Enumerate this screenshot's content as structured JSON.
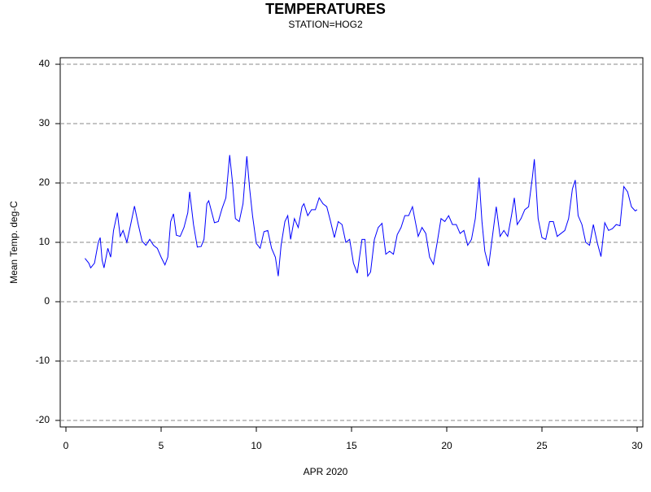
{
  "chart_data": {
    "type": "line",
    "title": "TEMPERATURES",
    "subtitle": "STATION=HOG2",
    "xlabel": "APR 2020",
    "ylabel": "Mean Temp. deg-C",
    "xlim": [
      -0.3,
      30.3
    ],
    "ylim": [
      -21.1,
      41.1
    ],
    "xticks": [
      0,
      5,
      10,
      15,
      20,
      25,
      30
    ],
    "yticks": [
      -20,
      -10,
      0,
      10,
      20,
      30,
      40
    ],
    "grid": true,
    "series": [
      {
        "color": "#0000ff",
        "x": [
          1.0,
          1.2,
          1.3,
          1.5,
          1.7,
          1.8,
          1.9,
          2.0,
          2.2,
          2.35,
          2.5,
          2.7,
          2.85,
          3.0,
          3.2,
          3.4,
          3.6,
          3.8,
          4.0,
          4.2,
          4.4,
          4.6,
          4.8,
          5.0,
          5.2,
          5.35,
          5.5,
          5.65,
          5.8,
          6.0,
          6.2,
          6.4,
          6.5,
          6.7,
          6.9,
          7.1,
          7.25,
          7.4,
          7.5,
          7.8,
          8.0,
          8.2,
          8.4,
          8.6,
          8.75,
          8.9,
          9.1,
          9.3,
          9.5,
          9.65,
          9.8,
          10.0,
          10.2,
          10.4,
          10.6,
          10.8,
          11.0,
          11.15,
          11.3,
          11.5,
          11.65,
          11.8,
          12.0,
          12.2,
          12.4,
          12.5,
          12.7,
          12.9,
          13.1,
          13.3,
          13.5,
          13.7,
          13.9,
          14.1,
          14.3,
          14.5,
          14.7,
          14.9,
          15.1,
          15.3,
          15.55,
          15.7,
          15.85,
          16.0,
          16.2,
          16.4,
          16.6,
          16.8,
          17.0,
          17.2,
          17.4,
          17.6,
          17.8,
          18.0,
          18.2,
          18.35,
          18.5,
          18.7,
          18.9,
          19.1,
          19.3,
          19.5,
          19.7,
          19.9,
          20.1,
          20.3,
          20.5,
          20.7,
          20.9,
          21.1,
          21.3,
          21.5,
          21.7,
          21.85,
          22.0,
          22.2,
          22.4,
          22.6,
          22.8,
          23.0,
          23.2,
          23.4,
          23.55,
          23.7,
          23.9,
          24.1,
          24.3,
          24.5,
          24.6,
          24.8,
          25.0,
          25.2,
          25.4,
          25.6,
          25.8,
          26.0,
          26.2,
          26.4,
          26.6,
          26.75,
          26.9,
          27.1,
          27.3,
          27.5,
          27.7,
          27.9,
          28.1,
          28.3,
          28.5,
          28.7,
          28.9,
          29.1,
          29.3,
          29.5,
          29.7,
          29.9,
          30.0
        ],
        "values": [
          7.3,
          6.5,
          5.7,
          6.5,
          10,
          10.8,
          7,
          5.7,
          9,
          7.5,
          12,
          15,
          11,
          12,
          10,
          13,
          16.1,
          13,
          10.2,
          9.5,
          10.5,
          9.5,
          9,
          7.5,
          6.2,
          7.5,
          13.5,
          14.8,
          11.2,
          11,
          12.5,
          15,
          18.5,
          13,
          9.2,
          9.3,
          10.5,
          16.5,
          17,
          13.3,
          13.5,
          15.7,
          17.5,
          24.7,
          20,
          14,
          13.5,
          16.5,
          24.5,
          19,
          14.5,
          9.8,
          9,
          11.8,
          12,
          9,
          7.5,
          4.3,
          9.5,
          13.5,
          14.5,
          10.5,
          14,
          12.5,
          16,
          16.5,
          14.5,
          15.5,
          15.5,
          17.5,
          16.5,
          16,
          13.5,
          10.8,
          13.5,
          13,
          10,
          10.5,
          6.5,
          4.8,
          10.5,
          10.5,
          4.3,
          5,
          10.5,
          12.5,
          13.2,
          8,
          8.5,
          8,
          11.3,
          12.5,
          14.5,
          14.5,
          16,
          13.5,
          11,
          12.5,
          11.5,
          7.5,
          6.3,
          10,
          14,
          13.5,
          14.5,
          13,
          13,
          11.5,
          12,
          9.5,
          10.5,
          14,
          20.9,
          13.5,
          8.5,
          6,
          11,
          16,
          11,
          12,
          11,
          14.5,
          17.5,
          13,
          14,
          15.5,
          16,
          21,
          24,
          14,
          10.8,
          10.5,
          13.5,
          13.5,
          11,
          11.5,
          12,
          14,
          19,
          20.5,
          14.5,
          13,
          10,
          9.5,
          13,
          10,
          7.6,
          13.3,
          12,
          12.3,
          13,
          12.8,
          19.4,
          18.5,
          16,
          15.3,
          15.5
        ]
      }
    ]
  }
}
